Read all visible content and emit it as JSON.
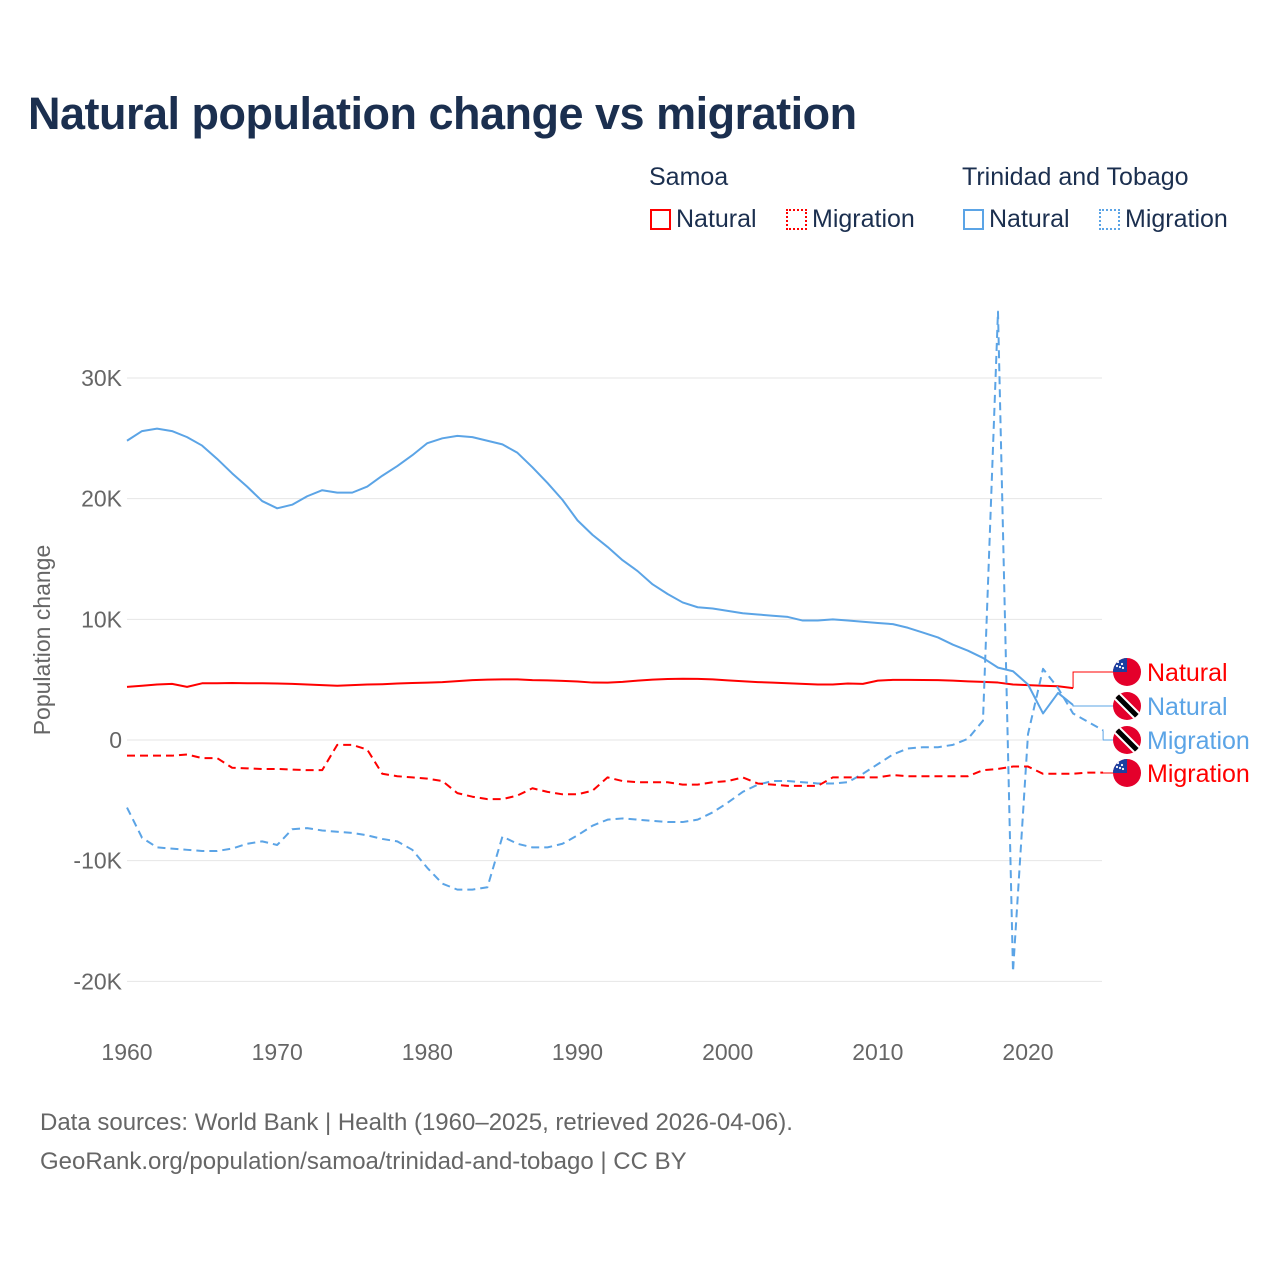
{
  "title": "Natural population change vs migration",
  "legend": {
    "groups": [
      {
        "name": "Samoa",
        "color": "#ff0000",
        "items": [
          "Natural",
          "Migration"
        ]
      },
      {
        "name": "Trinidad and Tobago",
        "color": "#5ba4e6",
        "items": [
          "Natural",
          "Migration"
        ]
      }
    ]
  },
  "footer": {
    "line1": "Data sources: World Bank | Health (1960–2025, retrieved 2026-04-06).",
    "line2": "GeoRank.org/population/samoa/trinidad-and-tobago | CC BY"
  },
  "chart_data": {
    "type": "line",
    "title": "Natural population change vs migration",
    "xlabel": "",
    "ylabel": "Population change",
    "xlim": [
      1960,
      2025
    ],
    "ylim": [
      -22000,
      37000
    ],
    "x_ticks": [
      1960,
      1970,
      1980,
      1990,
      2000,
      2010,
      2020
    ],
    "y_ticks": [
      {
        "v": -20000,
        "label": "-20K"
      },
      {
        "v": -10000,
        "label": "-10K"
      },
      {
        "v": 0,
        "label": "0"
      },
      {
        "v": 10000,
        "label": "10K"
      },
      {
        "v": 20000,
        "label": "20K"
      },
      {
        "v": 30000,
        "label": "30K"
      }
    ],
    "grid": true,
    "legend_placement": "top-right",
    "series": [
      {
        "name": "Samoa Natural",
        "end_label": "Natural",
        "flag": "samoa",
        "color": "#ff0000",
        "dash": false,
        "start": 1960,
        "values": [
          4.4,
          4.5,
          4.6,
          4.65,
          4.4,
          4.7,
          4.7,
          4.72,
          4.7,
          4.7,
          4.68,
          4.65,
          4.6,
          4.55,
          4.5,
          4.55,
          4.6,
          4.62,
          4.68,
          4.72,
          4.75,
          4.8,
          4.88,
          4.96,
          5.0,
          5.02,
          5.02,
          4.96,
          4.94,
          4.9,
          4.85,
          4.76,
          4.75,
          4.82,
          4.92,
          5.0,
          5.05,
          5.08,
          5.07,
          5.02,
          4.94,
          4.87,
          4.8,
          4.75,
          4.7,
          4.65,
          4.6,
          4.6,
          4.68,
          4.65,
          4.92,
          4.98,
          4.98,
          4.97,
          4.96,
          4.92,
          4.86,
          4.82,
          4.76,
          4.6,
          4.55,
          4.5,
          4.45,
          4.3
        ]
      },
      {
        "name": "Trinidad and Tobago Natural",
        "end_label": "Natural",
        "flag": "trinidad",
        "color": "#5ba4e6",
        "dash": false,
        "start": 1960,
        "values": [
          24.8,
          25.6,
          25.8,
          25.6,
          25.1,
          24.4,
          23.3,
          22.1,
          21.0,
          19.8,
          19.2,
          19.5,
          20.2,
          20.7,
          20.5,
          20.5,
          21.0,
          21.9,
          22.7,
          23.6,
          24.6,
          25.0,
          25.2,
          25.1,
          24.8,
          24.5,
          23.8,
          22.6,
          21.3,
          19.9,
          18.2,
          17.0,
          16.0,
          14.9,
          14.0,
          12.9,
          12.1,
          11.4,
          11.0,
          10.9,
          10.7,
          10.5,
          10.4,
          10.3,
          10.2,
          9.9,
          9.9,
          10.0,
          9.9,
          9.8,
          9.7,
          9.6,
          9.3,
          8.9,
          8.5,
          7.9,
          7.4,
          6.8,
          6.0,
          5.7,
          4.6,
          2.2,
          3.9,
          2.9
        ]
      },
      {
        "name": "Trinidad and Tobago Migration",
        "end_label": "Migration",
        "flag": "trinidad",
        "color": "#5ba4e6",
        "dash": true,
        "start": 1960,
        "values": [
          -5.6,
          -8.1,
          -8.9,
          -9.0,
          -9.1,
          -9.2,
          -9.2,
          -9.0,
          -8.6,
          -8.4,
          -8.7,
          -7.4,
          -7.3,
          -7.5,
          -7.6,
          -7.7,
          -7.9,
          -8.2,
          -8.4,
          -9.1,
          -10.6,
          -11.9,
          -12.4,
          -12.4,
          -12.2,
          -8.0,
          -8.6,
          -8.9,
          -8.9,
          -8.6,
          -7.9,
          -7.1,
          -6.6,
          -6.5,
          -6.6,
          -6.7,
          -6.8,
          -6.8,
          -6.6,
          -6.0,
          -5.2,
          -4.3,
          -3.7,
          -3.4,
          -3.4,
          -3.5,
          -3.6,
          -3.6,
          -3.5,
          -2.8,
          -2.0,
          -1.2,
          -0.7,
          -0.6,
          -0.6,
          -0.4,
          0.1,
          1.6,
          35.5,
          -19.2,
          0.5,
          5.9,
          4.3,
          2.2,
          1.5,
          0.8
        ]
      },
      {
        "name": "Samoa Migration",
        "end_label": "Migration",
        "flag": "samoa",
        "color": "#ff0000",
        "dash": true,
        "start": 1960,
        "values": [
          -1.3,
          -1.3,
          -1.3,
          -1.3,
          -1.2,
          -1.5,
          -1.5,
          -2.3,
          -2.35,
          -2.4,
          -2.4,
          -2.45,
          -2.5,
          -2.5,
          -0.4,
          -0.4,
          -0.8,
          -2.8,
          -3.0,
          -3.1,
          -3.2,
          -3.4,
          -4.4,
          -4.7,
          -4.9,
          -4.9,
          -4.6,
          -4.0,
          -4.3,
          -4.5,
          -4.5,
          -4.2,
          -3.1,
          -3.4,
          -3.5,
          -3.5,
          -3.5,
          -3.7,
          -3.7,
          -3.5,
          -3.4,
          -3.1,
          -3.6,
          -3.7,
          -3.8,
          -3.8,
          -3.8,
          -3.1,
          -3.1,
          -3.1,
          -3.1,
          -2.9,
          -3.0,
          -3.0,
          -3.0,
          -3.0,
          -3.0,
          -2.5,
          -2.4,
          -2.2,
          -2.2,
          -2.8,
          -2.8,
          -2.8,
          -2.7,
          -2.7
        ]
      }
    ],
    "units": "thousands"
  }
}
